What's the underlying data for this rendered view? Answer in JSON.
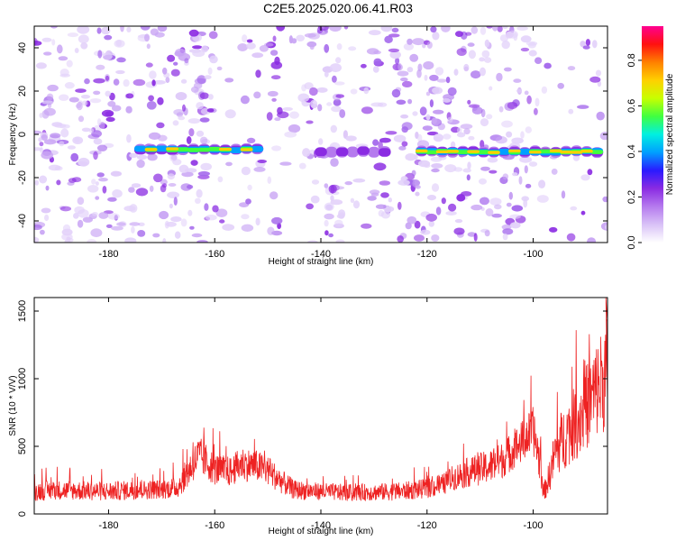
{
  "title": "C2E5.2025.020.06.41.R03",
  "colors": {
    "snr_line": "#ee2222",
    "colormap": [
      "#ffffff",
      "#d9c2f7",
      "#b57aee",
      "#8a2be2",
      "#2a1aff",
      "#00a0ff",
      "#00f0e0",
      "#40ff40",
      "#c8ff00",
      "#ffd000",
      "#ff8000",
      "#ff1010",
      "#ff0090"
    ]
  },
  "chart_data": [
    {
      "type": "heatmap",
      "xlabel": "Height of straight line (km)",
      "ylabel": "Frequency (Hz)",
      "xlim": [
        -194,
        -86
      ],
      "ylim": [
        -50,
        50
      ],
      "xticks": [
        -180,
        -160,
        -140,
        -120,
        -100
      ],
      "yticks": [
        -40,
        -20,
        0,
        20,
        40
      ],
      "colorbar": {
        "label": "Normalized spectral amplitude",
        "range": [
          0,
          0.95
        ],
        "ticks": [
          0.0,
          0.2,
          0.4,
          0.6,
          0.8
        ]
      },
      "signal_segments": [
        {
          "x_start": -175,
          "x_end": -151,
          "freq": -7,
          "peak": 0.75
        },
        {
          "x_start": -141,
          "x_end": -127,
          "freq": -8,
          "peak": 0.3
        },
        {
          "x_start": -122,
          "x_end": -87,
          "freq": -8,
          "peak": 0.85
        }
      ]
    },
    {
      "type": "line",
      "xlabel": "Height of straight line (km)",
      "ylabel": "SNR (10 * V/V)",
      "xlim": [
        -194,
        -86
      ],
      "ylim": [
        0,
        1600
      ],
      "xticks": [
        -180,
        -160,
        -140,
        -120,
        -100
      ],
      "yticks": [
        0,
        500,
        1000,
        1500
      ],
      "series": [
        {
          "x": [
            -194,
            -190,
            -185,
            -180,
            -175,
            -170,
            -167,
            -165,
            -163,
            -160,
            -157,
            -155,
            -152,
            -150,
            -147,
            -145,
            -140,
            -135,
            -130,
            -125,
            -120,
            -117,
            -115,
            -112,
            -110,
            -108,
            -106,
            -104,
            -102,
            -100,
            -99,
            -98,
            -97,
            -96,
            -95,
            -93,
            -91,
            -89,
            -87,
            -86
          ],
          "y": [
            160,
            170,
            165,
            160,
            170,
            175,
            190,
            300,
            420,
            320,
            300,
            360,
            340,
            310,
            220,
            170,
            160,
            150,
            155,
            160,
            180,
            210,
            260,
            300,
            320,
            340,
            380,
            450,
            520,
            600,
            420,
            150,
            260,
            420,
            500,
            600,
            700,
            820,
            950,
            1000
          ],
          "spread": [
            90,
            90,
            90,
            90,
            90,
            90,
            100,
            150,
            180,
            150,
            140,
            160,
            150,
            140,
            110,
            90,
            80,
            80,
            80,
            85,
            90,
            100,
            120,
            140,
            150,
            160,
            170,
            180,
            200,
            220,
            200,
            80,
            150,
            220,
            280,
            320,
            380,
            420,
            500,
            550
          ]
        }
      ]
    }
  ]
}
